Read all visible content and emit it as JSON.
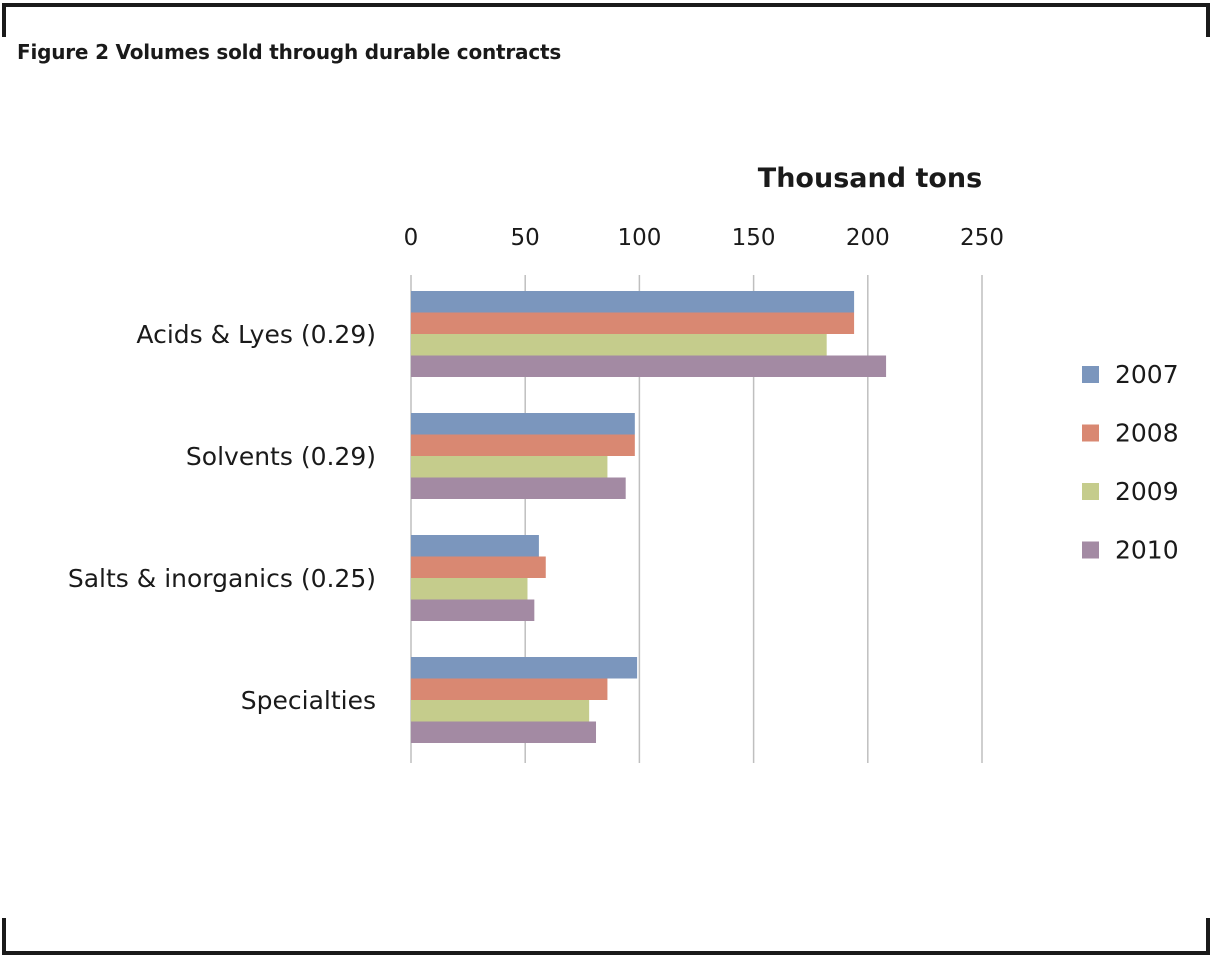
{
  "figure": {
    "title": "Figure 2 Volumes sold through durable contracts"
  },
  "chart_data": {
    "type": "bar",
    "orientation": "horizontal",
    "xlabel": "Thousand tons",
    "xlim": [
      0,
      250
    ],
    "xticks": [
      0,
      50,
      100,
      150,
      200,
      250
    ],
    "xtick_labels": [
      "0",
      "50",
      "100",
      "150",
      "200",
      "250"
    ],
    "x_axis_position": "top",
    "grid": true,
    "legend_position": "right",
    "categories": [
      "Acids & Lyes (0.29)",
      "Solvents (0.29)",
      "Salts & inorganics  (0.25)",
      "Specialties"
    ],
    "series": [
      {
        "name": "2007",
        "color": "#7b96bd",
        "values": [
          194,
          98,
          56,
          99
        ]
      },
      {
        "name": "2008",
        "color": "#d98872",
        "values": [
          194,
          98,
          59,
          86
        ]
      },
      {
        "name": "2009",
        "color": "#c5cc8c",
        "values": [
          182,
          86,
          51,
          78
        ]
      },
      {
        "name": "2010",
        "color": "#a38aa3",
        "values": [
          208,
          94,
          54,
          81
        ]
      }
    ],
    "gridline_color": "#bfbfbf"
  }
}
